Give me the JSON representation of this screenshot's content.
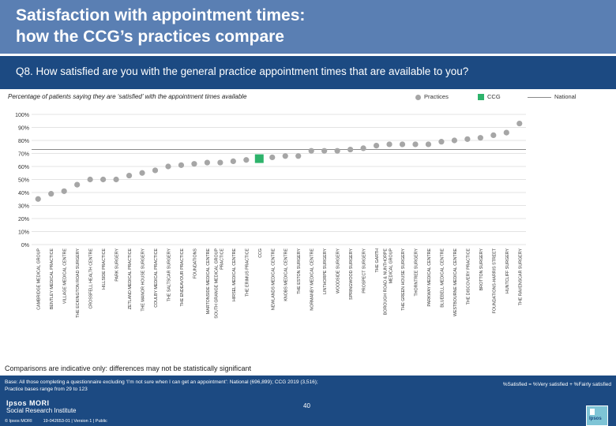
{
  "header": {
    "title_line1": "Satisfaction with appointment times:",
    "title_line2": "how the CCG’s practices compare"
  },
  "question": "Q8. How satisfied are you with the general practice appointment times that are available to you?",
  "subtitle": "Percentage of patients saying they are ‘satisfied’ with the appointment times available",
  "legend": {
    "practices": "Practices",
    "ccg": "CCG",
    "national": "National"
  },
  "colors": {
    "practice": "#a6a6a6",
    "ccg": "#2eb36b",
    "national": "#8a8a8a",
    "header": "#5a7fb3",
    "band": "#1c4a82"
  },
  "chart_data": {
    "type": "scatter",
    "title": "Percentage of patients saying they are ‘satisfied’ with the appointment times available",
    "ylim": [
      0,
      100
    ],
    "yticks": [
      "0%",
      "10%",
      "20%",
      "30%",
      "40%",
      "50%",
      "60%",
      "70%",
      "80%",
      "90%",
      "100%"
    ],
    "categories": [
      "CAMBRIDGE MEDICAL GROUP",
      "BENTLEY MEDICAL PRACTICE",
      "VILLAGE MEDICAL CENTRE",
      "THE ECKINGTON ROAD SURGERY",
      "CROSSFELL HEALTH CENTRE",
      "HILLSIDE PRACTICE",
      "PARK SURGERY",
      "ZETLAND MEDICAL PRACTICE",
      "THE MANOR HOUSE SURGERY",
      "COULBY MEDICAL PRACTICE",
      "THE SALTSCAR SURGERY",
      "THE ENDEAVOUR PRACTICE",
      "FOUNDATIONS",
      "MARTONSIDE MEDICAL CENTRE",
      "SOUTH GRANGE MEDICAL GROUP PRACTICE",
      "HIRSEL MEDICAL CENTRE",
      "THE ERIMUS PRACTICE",
      "CCG",
      "NEWLANDS MEDICAL CENTRE",
      "KNOBS MEDICAL CENTRE",
      "THE ESTON SURGERY",
      "NORMANBY MEDICAL CENTRE",
      "LINTHORPE SURGERY",
      "WOODSIDE SURGERY",
      "SPRINGWOOD SURGERY",
      "PROSPECT SURGERY",
      "THE GARTH",
      "BOROUGH ROAD & NUNTHORPE MEDICAL GROUP",
      "THE GREEN HOUSE SURGERY",
      "THORNTREE SURGERY",
      "PARKWAY MEDICAL CENTRE",
      "BLUEBELL MEDICAL CENTRE",
      "WESTBOURNE MEDICAL CENTRE",
      "THE DISCOVERY PRACTICE",
      "BROTTON SURGERY",
      "FOUNDATIONS-HARRIS STREET",
      "HUNTCLIFF SURGERY",
      "THE RAVENSCAR SURGERY"
    ],
    "values": [
      35,
      39,
      41,
      46,
      50,
      50,
      50,
      53,
      55,
      57,
      60,
      61,
      62,
      63,
      63,
      64,
      65,
      66,
      67,
      68,
      68,
      72,
      72,
      72,
      73,
      74,
      76,
      77,
      77,
      77,
      77,
      79,
      80,
      81,
      82,
      84,
      86,
      93
    ],
    "ccg_index": 17,
    "national": 73
  },
  "note": "Comparisons are indicative only: differences may not be statistically significant",
  "footer": {
    "base_line1": "Base: All those completing a questionnaire excluding ‘I’m not sure when I can get an appointment’: National (696,899); CCG 2019 (3,516);",
    "base_line2": "Practice bases range from 29 to 123",
    "key": "%Satisfied = %Very satisfied + %Fairly satisfied",
    "page": "40",
    "logo_name": "Ipsos MORI",
    "logo_sub": "Social Research Institute",
    "copyright": "© Ipsos MORI",
    "version": "19-042653-01 | Version 1 | Public",
    "badge": "Ipsos"
  }
}
